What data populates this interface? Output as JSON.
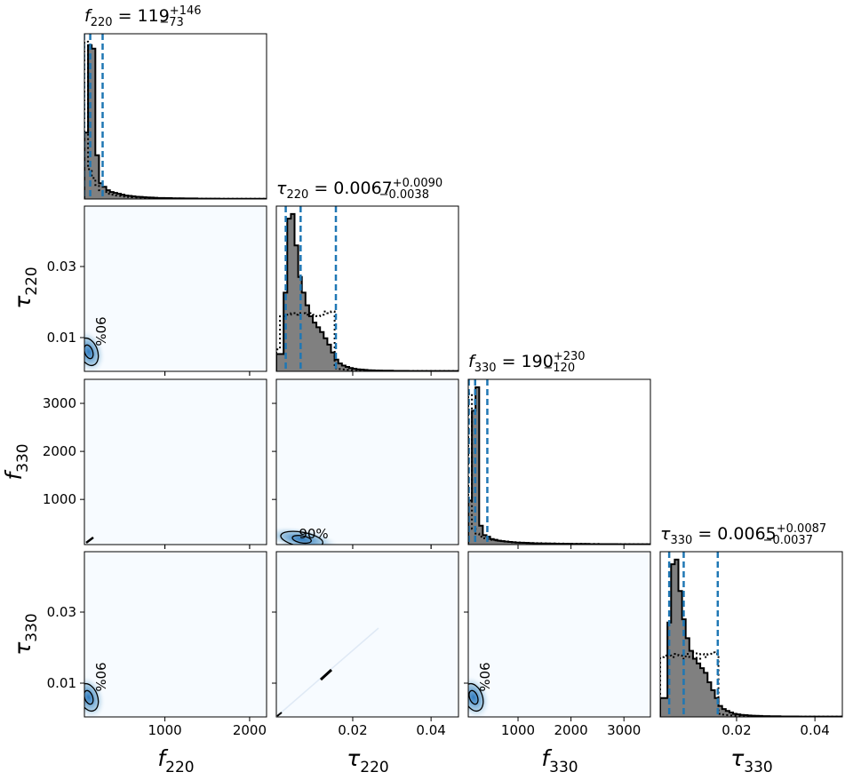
{
  "chart_data": {
    "type": "corner",
    "parameters": [
      {
        "key": "f220",
        "symbol": "f",
        "sub": "220",
        "range": [
          50,
          2200
        ],
        "ticks": [
          1000,
          2000
        ],
        "tick_labels": [
          "1000",
          "2000"
        ]
      },
      {
        "key": "tau220",
        "symbol": "τ",
        "sub": "220",
        "range": [
          0.0005,
          0.047
        ],
        "ticks": [
          0.01,
          0.02,
          0.03,
          0.04
        ],
        "tick_labels": [
          "0.01",
          "0.02",
          "0.03",
          "0.04"
        ]
      },
      {
        "key": "f330",
        "symbol": "f",
        "sub": "330",
        "range": [
          60,
          3500
        ],
        "ticks": [
          1000,
          2000,
          3000
        ],
        "tick_labels": [
          "1000",
          "2000",
          "3000"
        ]
      },
      {
        "key": "tau330",
        "symbol": "τ",
        "sub": "330",
        "range": [
          0.0005,
          0.047
        ],
        "ticks": [
          0.01,
          0.02,
          0.03,
          0.04
        ],
        "tick_labels": [
          "0.01",
          "0.02",
          "0.03",
          "0.04"
        ]
      }
    ],
    "diagonal_axes": {
      "x_ticks": [
        [],
        [
          0.02,
          0.04
        ],
        [
          1000,
          2000,
          3000
        ],
        [
          0.02,
          0.04
        ]
      ],
      "x_tick_labels": [
        [],
        [
          "0.02",
          "0.04"
        ],
        [
          "1000",
          "2000",
          "3000"
        ],
        [
          "0.02",
          "0.04"
        ]
      ]
    },
    "bottom_x_ticks": [
      {
        "ticks": [
          1000,
          2000
        ],
        "labels": [
          "1000",
          "2000"
        ]
      },
      {
        "ticks": [
          0.02,
          0.04
        ],
        "labels": [
          "0.02",
          "0.04"
        ]
      },
      {
        "ticks": [
          1000,
          2000,
          3000
        ],
        "labels": [
          "1000",
          "2000",
          "3000"
        ]
      },
      {
        "ticks": [
          0.02,
          0.04
        ],
        "labels": [
          "0.02",
          "0.04"
        ]
      }
    ],
    "left_y_ticks": [
      null,
      {
        "ticks": [
          0.01,
          0.03
        ],
        "labels": [
          "0.01",
          "0.03"
        ]
      },
      {
        "ticks": [
          1000,
          2000,
          3000
        ],
        "labels": [
          "1000",
          "2000",
          "3000"
        ]
      },
      {
        "ticks": [
          0.01,
          0.03
        ],
        "labels": [
          "0.01",
          "0.03"
        ]
      }
    ],
    "titles": [
      {
        "lhs": "f",
        "sub": "220",
        "eq": " = 119",
        "sup": "+146",
        "low": "−73"
      },
      {
        "lhs": "τ",
        "sub": "220",
        "eq": " = 0.0067",
        "sup": "+0.0090",
        "low": "−0.0038"
      },
      {
        "lhs": "f",
        "sub": "330",
        "eq": " = 190",
        "sup": "+230",
        "low": "−120"
      },
      {
        "lhs": "τ",
        "sub": "330",
        "eq": " = 0.0065",
        "sup": "+0.0087",
        "low": "−0.0037"
      }
    ],
    "quantiles": [
      [
        46,
        119,
        265
      ],
      [
        0.0029,
        0.0067,
        0.0157
      ],
      [
        70,
        190,
        420
      ],
      [
        0.0028,
        0.0065,
        0.0152
      ]
    ],
    "histograms": [
      {
        "edges_start": 50,
        "bin_width": 43,
        "posterior": [
          0.38,
          0.88,
          0.86,
          0.25,
          0.09,
          0.07,
          0.05,
          0.04,
          0.035,
          0.03,
          0.025,
          0.02,
          0.018,
          0.015,
          0.013,
          0.012,
          0.01,
          0.009,
          0.008,
          0.007,
          0.006,
          0.006,
          0.005,
          0.005,
          0.004,
          0.004,
          0.004,
          0.003,
          0.003,
          0.003,
          0.003,
          0.002,
          0.002,
          0.002,
          0.002,
          0.002,
          0.002,
          0.001,
          0.001,
          0.001,
          0.001,
          0.001,
          0.001,
          0.001,
          0.001,
          0.001,
          0.001,
          0.001,
          0.001,
          0.001
        ],
        "prior": [
          0.9,
          0.17,
          0.12,
          0.08,
          0.05,
          0.04,
          0.03,
          0.025,
          0.02,
          0.018,
          0.015,
          0.013,
          0.011,
          0.01,
          0.009,
          0.008,
          0.007,
          0.006,
          0.006,
          0.005,
          0.005,
          0.004,
          0.004,
          0.004,
          0.003,
          0.003,
          0.003,
          0.003,
          0.002,
          0.002,
          0.002,
          0.002,
          0.002,
          0.002,
          0.001,
          0.001,
          0.001,
          0.001,
          0.001,
          0.001,
          0.001,
          0.001,
          0.001,
          0.001,
          0.001,
          0.001,
          0.001,
          0.001,
          0.001,
          0.001
        ]
      },
      {
        "edges_start": 0.0005,
        "bin_width": 0.00093,
        "posterior": [
          0.11,
          0.11,
          0.5,
          0.97,
          1.0,
          0.8,
          0.6,
          0.5,
          0.42,
          0.35,
          0.31,
          0.28,
          0.25,
          0.21,
          0.17,
          0.12,
          0.075,
          0.05,
          0.037,
          0.028,
          0.021,
          0.016,
          0.013,
          0.011,
          0.009,
          0.007,
          0.006,
          0.005,
          0.005,
          0.004,
          0.004,
          0.004,
          0.003,
          0.003,
          0.003,
          0.003,
          0.002,
          0.002,
          0.002,
          0.002,
          0.002,
          0.002,
          0.002,
          0.002,
          0.002,
          0.002,
          0.002,
          0.002,
          0.002,
          0.002
        ],
        "prior": [
          0.14,
          0.35,
          0.35,
          0.36,
          0.37,
          0.36,
          0.37,
          0.37,
          0.36,
          0.37,
          0.36,
          0.35,
          0.36,
          0.38,
          0.37,
          0.38,
          0.02,
          0.015,
          0.012,
          0.01,
          0.008,
          0.007,
          0.006,
          0.005,
          0.005,
          0.004,
          0.004,
          0.004,
          0.003,
          0.003,
          0.003,
          0.003,
          0.003,
          0.002,
          0.002,
          0.002,
          0.002,
          0.002,
          0.002,
          0.002,
          0.002,
          0.002,
          0.002,
          0.002,
          0.002,
          0.002,
          0.002,
          0.002,
          0.002,
          0.002
        ]
      },
      {
        "edges_start": 60,
        "bin_width": 68.8,
        "posterior": [
          0.28,
          0.85,
          1.0,
          0.12,
          0.06,
          0.05,
          0.035,
          0.03,
          0.025,
          0.022,
          0.019,
          0.017,
          0.015,
          0.013,
          0.012,
          0.011,
          0.01,
          0.009,
          0.008,
          0.008,
          0.007,
          0.007,
          0.006,
          0.006,
          0.005,
          0.005,
          0.005,
          0.005,
          0.004,
          0.004,
          0.004,
          0.004,
          0.004,
          0.003,
          0.003,
          0.003,
          0.003,
          0.003,
          0.003,
          0.003,
          0.003,
          0.002,
          0.002,
          0.002,
          0.002,
          0.002,
          0.002,
          0.002,
          0.002,
          0.002
        ],
        "prior": [
          0.96,
          0.1,
          0.07,
          0.05,
          0.04,
          0.035,
          0.03,
          0.027,
          0.024,
          0.021,
          0.019,
          0.017,
          0.015,
          0.014,
          0.013,
          0.012,
          0.011,
          0.01,
          0.009,
          0.009,
          0.008,
          0.008,
          0.007,
          0.007,
          0.006,
          0.006,
          0.006,
          0.005,
          0.005,
          0.005,
          0.005,
          0.004,
          0.004,
          0.004,
          0.004,
          0.004,
          0.003,
          0.003,
          0.003,
          0.003,
          0.003,
          0.003,
          0.003,
          0.003,
          0.003,
          0.002,
          0.002,
          0.002,
          0.002,
          0.002
        ]
      },
      {
        "edges_start": 0.0005,
        "bin_width": 0.00093,
        "posterior": [
          0.12,
          0.12,
          0.6,
          0.97,
          1.0,
          0.8,
          0.62,
          0.5,
          0.42,
          0.37,
          0.34,
          0.31,
          0.28,
          0.22,
          0.17,
          0.12,
          0.07,
          0.05,
          0.038,
          0.028,
          0.02,
          0.016,
          0.013,
          0.011,
          0.009,
          0.008,
          0.007,
          0.006,
          0.005,
          0.005,
          0.004,
          0.004,
          0.004,
          0.003,
          0.003,
          0.003,
          0.003,
          0.003,
          0.002,
          0.002,
          0.002,
          0.002,
          0.002,
          0.002,
          0.002,
          0.002,
          0.002,
          0.002,
          0.002,
          0.002
        ],
        "prior": [
          0.38,
          0.39,
          0.39,
          0.38,
          0.4,
          0.39,
          0.37,
          0.4,
          0.38,
          0.41,
          0.37,
          0.4,
          0.38,
          0.4,
          0.41,
          0.4,
          0.02,
          0.015,
          0.012,
          0.01,
          0.008,
          0.007,
          0.006,
          0.005,
          0.005,
          0.004,
          0.004,
          0.004,
          0.003,
          0.003,
          0.003,
          0.003,
          0.003,
          0.002,
          0.002,
          0.002,
          0.002,
          0.002,
          0.002,
          0.002,
          0.002,
          0.002,
          0.002,
          0.002,
          0.002,
          0.002,
          0.002,
          0.002,
          0.002,
          0.002
        ]
      }
    ],
    "contour_label": "90%",
    "colors": {
      "posterior_fill": "#808080",
      "quantile_line": "#1f77b4",
      "density_bg": "#f7fbff",
      "density_core": "#2f7bbf",
      "density_mid": "#a6cbe4",
      "line": "#000000"
    },
    "grid": false
  }
}
